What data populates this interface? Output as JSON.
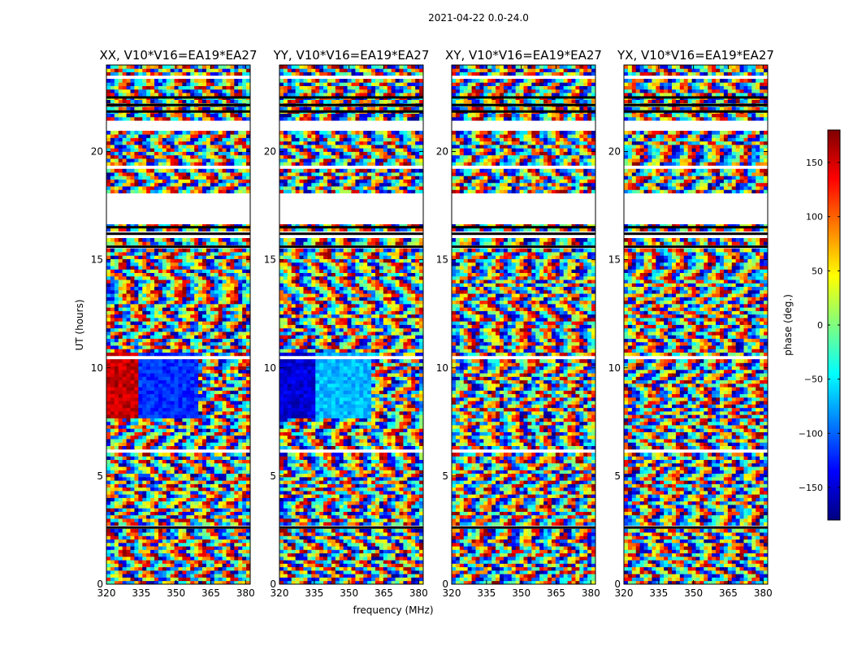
{
  "figure": {
    "suptitle": "2021-04-22 0.0-24.0",
    "xlabel": "frequency (MHz)",
    "ylabel": "UT (hours)"
  },
  "colorbar": {
    "label": "phase (deg.)",
    "ticks": [
      150,
      100,
      50,
      0,
      -50,
      -100,
      -150
    ],
    "tick_labels": [
      "150",
      "100",
      "50",
      "0",
      "−50",
      "−100",
      "−150"
    ],
    "range": [
      -180,
      180
    ],
    "colormap": "jet",
    "colors": [
      "#00007f",
      "#0000ff",
      "#007fff",
      "#00ffff",
      "#7fff7f",
      "#ffff00",
      "#ff7f00",
      "#ff0000",
      "#7f0000"
    ]
  },
  "chart_data": {
    "type": "heatmap",
    "x_range": [
      320,
      382
    ],
    "y_range": [
      0,
      24
    ],
    "x_ticks": [
      320,
      335,
      350,
      365,
      380
    ],
    "y_ticks": [
      0,
      5,
      10,
      15,
      20
    ],
    "z_label": "phase (deg.)",
    "z_range": [
      -180,
      180
    ],
    "flagged_color": "#ffffff",
    "panels": [
      {
        "title": "XX, V10*V16=EA19*EA27",
        "coherent_phase_bands": [
          {
            "ut": [
              7.6,
              10.6
            ],
            "freq": [
              320,
              333
            ],
            "phase_deg": 155
          },
          {
            "ut": [
              7.6,
              10.6
            ],
            "freq": [
              333,
              360
            ],
            "phase_deg": -120
          }
        ]
      },
      {
        "title": "YY, V10*V16=EA19*EA27",
        "coherent_phase_bands": [
          {
            "ut": [
              7.6,
              10.6
            ],
            "freq": [
              320,
              336
            ],
            "phase_deg": -150
          },
          {
            "ut": [
              7.6,
              10.6
            ],
            "freq": [
              336,
              360
            ],
            "phase_deg": -70
          }
        ]
      },
      {
        "title": "XY, V10*V16=EA19*EA27",
        "coherent_phase_bands": []
      },
      {
        "title": "YX, V10*V16=EA19*EA27",
        "coherent_phase_bands": []
      }
    ]
  }
}
